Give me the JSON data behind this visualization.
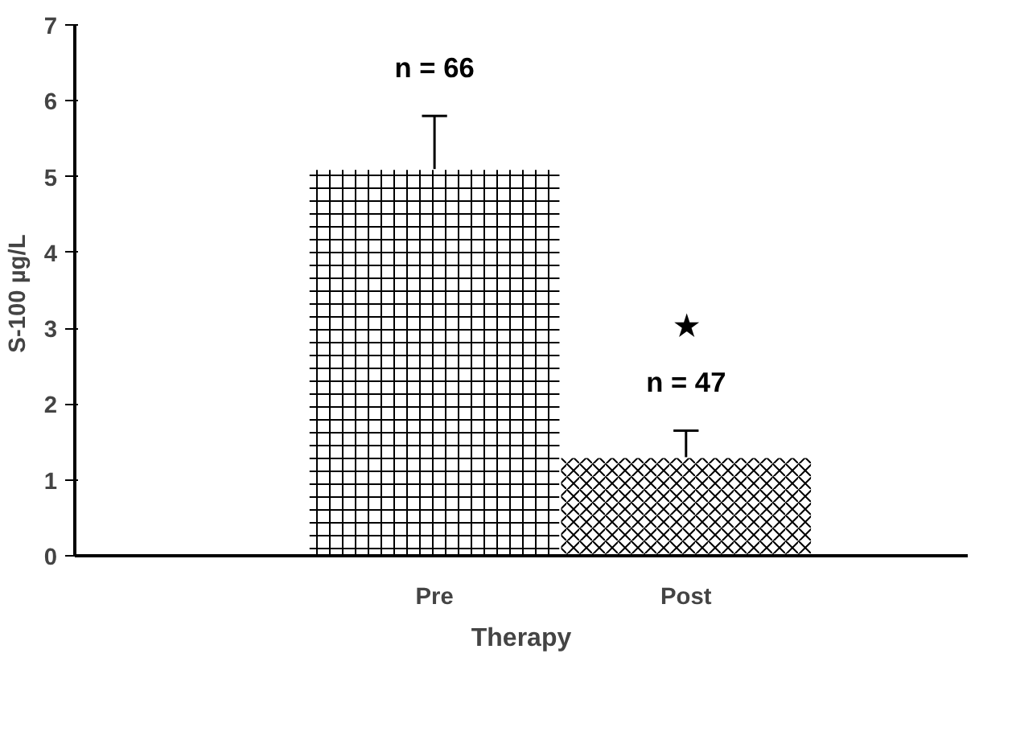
{
  "chart_data": {
    "type": "bar",
    "categories": [
      "Pre",
      "Post"
    ],
    "values": [
      5.1,
      1.3
    ],
    "errors": [
      [
        5.1,
        5.8
      ],
      [
        1.3,
        1.65
      ]
    ],
    "colors": [
      "#ffffff",
      "#ffffff"
    ],
    "ylabel": "S-100  µg/L",
    "xlabel": "Therapy",
    "ylim": [
      0,
      7
    ],
    "yticks": [
      0,
      1,
      2,
      3,
      4,
      5,
      6,
      7
    ],
    "grid": false,
    "annotations": [
      "n = 66",
      "n = 47",
      "★"
    ]
  }
}
